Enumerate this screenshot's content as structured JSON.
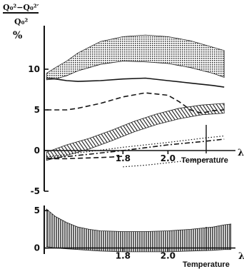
{
  "ylabel": {
    "fraction": "Q₀²−Q₀²′",
    "denominator": "Q₀²",
    "unit": "%"
  },
  "xlabel": "Temperature",
  "lambda_label": "λ",
  "chart_data": [
    {
      "type": "line",
      "name": "upper",
      "xlim": [
        1.45,
        2.3
      ],
      "ylim": [
        -5,
        15
      ],
      "yticks": [
        {
          "v": 10,
          "label": "10"
        },
        {
          "v": 5,
          "label": "5"
        },
        {
          "v": 0,
          "label": "0"
        },
        {
          "v": -5,
          "label": "-5"
        }
      ],
      "xticks": [
        {
          "v": 1.8,
          "label": "1.8"
        },
        {
          "v": 2.0,
          "label": "2.0"
        }
      ],
      "xlabel": "Temperature",
      "lambda_x": 2.17,
      "series": [
        {
          "style": "band-dots",
          "x": [
            1.46,
            1.5,
            1.55,
            1.6,
            1.7,
            1.8,
            1.9,
            2.0,
            2.1,
            2.2,
            2.25
          ],
          "lower": [
            8.7,
            8.8,
            9.2,
            9.8,
            10.6,
            11.0,
            10.9,
            10.7,
            10.2,
            9.5,
            9.0
          ],
          "upper": [
            9.5,
            10.2,
            11.0,
            12.0,
            13.4,
            14.0,
            14.2,
            14.0,
            13.5,
            12.7,
            12.3
          ]
        },
        {
          "style": "solid",
          "x": [
            1.46,
            1.5,
            1.55,
            1.6,
            1.7,
            1.8,
            1.9,
            2.0,
            2.1,
            2.2,
            2.25
          ],
          "y": [
            8.9,
            8.8,
            8.6,
            8.5,
            8.6,
            8.8,
            8.9,
            8.6,
            8.3,
            8.0,
            7.8
          ]
        },
        {
          "style": "dashed",
          "x": [
            1.46,
            1.5,
            1.55,
            1.6,
            1.7,
            1.8,
            1.9,
            2.0,
            2.05,
            2.1,
            2.15,
            2.2,
            2.25
          ],
          "y": [
            5.0,
            5.0,
            5.0,
            5.2,
            5.8,
            6.6,
            7.1,
            6.8,
            6.0,
            5.0,
            4.6,
            4.9,
            5.0
          ]
        },
        {
          "style": "band-hatched",
          "x": [
            1.46,
            1.55,
            1.65,
            1.75,
            1.85,
            1.95,
            2.05,
            2.15,
            2.25
          ],
          "lower": [
            -1.2,
            -0.6,
            0.2,
            1.2,
            2.3,
            3.2,
            3.9,
            4.4,
            4.6
          ],
          "upper": [
            -0.2,
            0.7,
            1.5,
            2.5,
            3.6,
            4.5,
            5.2,
            5.6,
            5.8
          ]
        },
        {
          "style": "dash-dot",
          "x": [
            1.46,
            1.6,
            1.8,
            2.0,
            2.15,
            2.25
          ],
          "y": [
            -1.0,
            -0.6,
            0.0,
            0.7,
            1.1,
            1.4
          ]
        },
        {
          "style": "dotted",
          "x": [
            1.46,
            1.6,
            1.8,
            2.0,
            2.15,
            2.25
          ],
          "y": [
            -0.8,
            -0.3,
            0.4,
            1.0,
            1.5,
            1.8
          ]
        },
        {
          "style": "dotted",
          "x": [
            1.8,
            1.9,
            2.0,
            2.1,
            2.2,
            2.25
          ],
          "y": [
            -2.0,
            -1.8,
            -1.5,
            -1.2,
            -1.0,
            -0.9
          ]
        },
        {
          "style": "dashed",
          "x": [
            1.46,
            1.55,
            1.65,
            1.75,
            1.8
          ],
          "y": [
            -1.0,
            -1.0,
            -0.9,
            -0.8,
            -0.7
          ]
        }
      ]
    },
    {
      "type": "area",
      "name": "lower",
      "xlim": [
        1.45,
        2.3
      ],
      "ylim": [
        -0.8,
        5.3
      ],
      "yticks": [
        {
          "v": 5,
          "label": "5"
        },
        {
          "v": 0,
          "label": "0"
        }
      ],
      "xticks": [
        {
          "v": 1.8,
          "label": "1.8"
        },
        {
          "v": 2.0,
          "label": "2.0"
        }
      ],
      "xlabel": "Temperature",
      "lambda_x": 2.17,
      "series": [
        {
          "style": "band-hatched",
          "x": [
            1.46,
            1.5,
            1.55,
            1.6,
            1.65,
            1.7,
            1.8,
            1.9,
            2.0,
            2.1,
            2.2,
            2.25,
            2.28
          ],
          "lower": [
            0.2,
            0.0,
            -0.1,
            -0.2,
            -0.3,
            -0.4,
            -0.5,
            -0.5,
            -0.5,
            -0.4,
            -0.3,
            -0.2,
            -0.2
          ],
          "upper": [
            5.2,
            4.2,
            3.4,
            2.8,
            2.5,
            2.3,
            2.2,
            2.2,
            2.3,
            2.5,
            2.8,
            3.1,
            3.2
          ]
        }
      ]
    }
  ]
}
